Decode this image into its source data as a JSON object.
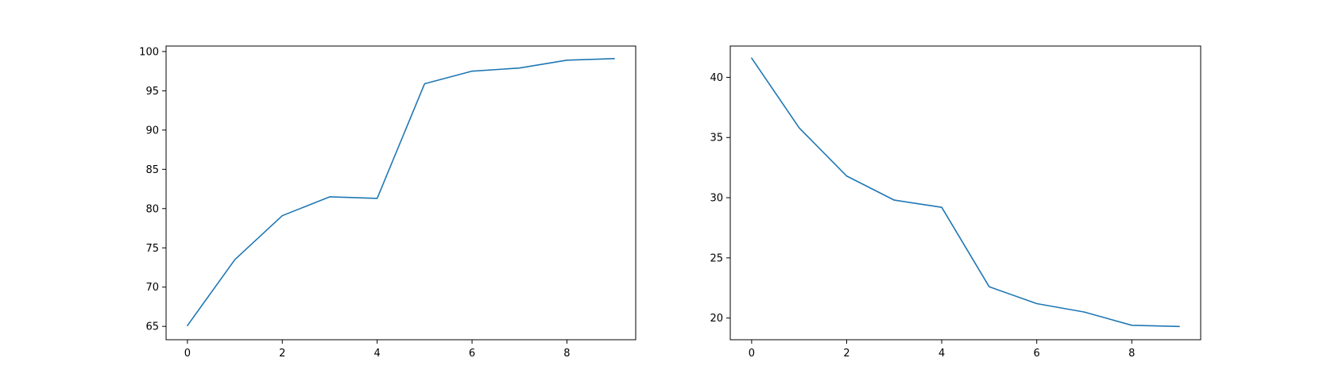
{
  "chart_data": [
    {
      "type": "line",
      "title": "",
      "xlabel": "",
      "ylabel": "",
      "xlim": [
        -0.45,
        9.45
      ],
      "ylim": [
        63.3,
        100.7
      ],
      "xticks": [
        0,
        2,
        4,
        6,
        8
      ],
      "yticks": [
        65,
        70,
        75,
        80,
        85,
        90,
        95,
        100
      ],
      "grid": false,
      "legend": "none",
      "x": [
        0,
        1,
        2,
        3,
        4,
        5,
        6,
        7,
        8,
        9
      ],
      "series": [
        {
          "color": "#1f77b4",
          "values": [
            65.1,
            73.5,
            79.1,
            81.5,
            81.3,
            95.9,
            97.5,
            97.9,
            98.9,
            99.1
          ]
        }
      ]
    },
    {
      "type": "line",
      "title": "",
      "xlabel": "",
      "ylabel": "",
      "xlim": [
        -0.45,
        9.45
      ],
      "ylim": [
        18.2,
        42.6
      ],
      "xticks": [
        0,
        2,
        4,
        6,
        8
      ],
      "yticks": [
        20,
        25,
        30,
        35,
        40
      ],
      "grid": false,
      "legend": "none",
      "x": [
        0,
        1,
        2,
        3,
        4,
        5,
        6,
        7,
        8,
        9
      ],
      "series": [
        {
          "color": "#1f77b4",
          "values": [
            41.6,
            35.8,
            31.8,
            29.8,
            29.2,
            22.6,
            21.2,
            20.5,
            19.4,
            19.3
          ]
        }
      ]
    }
  ]
}
